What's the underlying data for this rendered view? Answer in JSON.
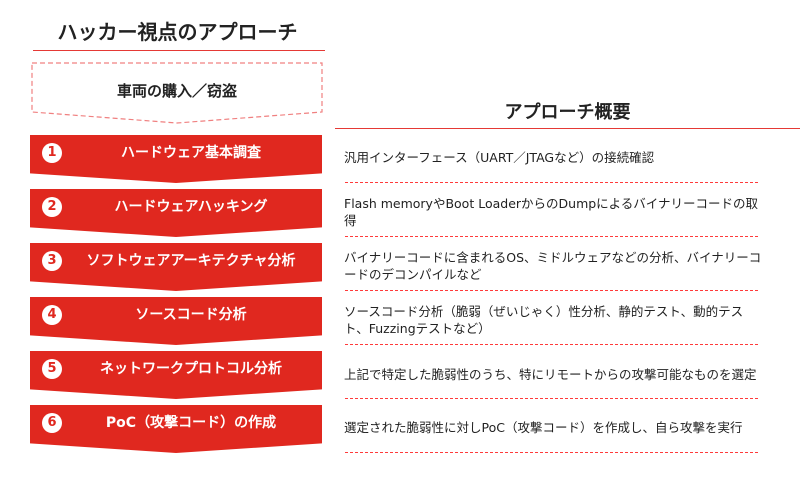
{
  "left": {
    "title": "ハッカー視点のアプローチ",
    "start": "車両の購入／窃盗",
    "steps": [
      {
        "num": "1",
        "label": "ハードウェア基本調査"
      },
      {
        "num": "2",
        "label": "ハードウェアハッキング"
      },
      {
        "num": "3",
        "label": "ソフトウェアアーキテクチャ分析"
      },
      {
        "num": "4",
        "label": "ソースコード分析"
      },
      {
        "num": "5",
        "label": "ネットワークプロトコル分析"
      },
      {
        "num": "6",
        "label": "PoC（攻撃コード）の作成"
      }
    ]
  },
  "right": {
    "title": "アプローチ概要",
    "descriptions": [
      "汎用インターフェース（UART／JTAGなど）の接続確認",
      "Flash memoryやBoot LoaderからのDumpによるバイナリーコードの取得",
      "バイナリーコードに含まれるOS、ミドルウェアなどの分析、バイナリーコードのデコンパイルなど",
      "ソースコード分析（脆弱（ぜいじゃく）性分析、静的テスト、動的テスト、Fuzzingテストなど）",
      "上記で特定した脆弱性のうち、特にリモートからの攻撃可能なものを選定",
      "選定された脆弱性に対しPoC（攻撃コード）を作成し、自ら攻撃を実行"
    ]
  },
  "colors": {
    "accent": "#e0281f"
  }
}
